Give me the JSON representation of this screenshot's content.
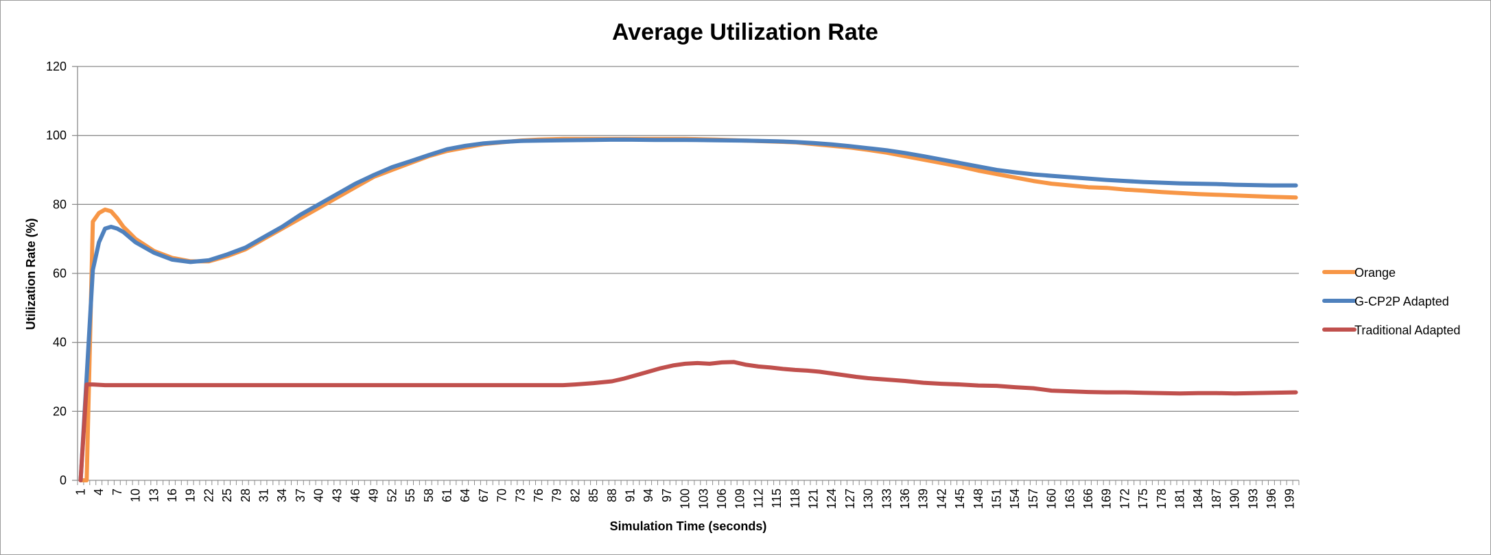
{
  "chart_data": {
    "type": "line",
    "title": "Average Utilization Rate",
    "xlabel": "Simulation Time (seconds)",
    "ylabel": "Utilization Rate (%)",
    "ylim": [
      0,
      120
    ],
    "yticks": [
      0,
      20,
      40,
      60,
      80,
      100,
      120
    ],
    "xlim": [
      1,
      200
    ],
    "xtick_labels": [
      "1",
      "4",
      "7",
      "10",
      "13",
      "16",
      "19",
      "22",
      "25",
      "28",
      "31",
      "34",
      "37",
      "40",
      "43",
      "46",
      "49",
      "52",
      "55",
      "58",
      "61",
      "64",
      "67",
      "70",
      "73",
      "76",
      "79",
      "82",
      "85",
      "88",
      "91",
      "94",
      "97",
      "100",
      "103",
      "106",
      "109",
      "112",
      "115",
      "118",
      "121",
      "124",
      "127",
      "130",
      "133",
      "136",
      "139",
      "142",
      "145",
      "148",
      "151",
      "154",
      "157",
      "160",
      "163",
      "166",
      "169",
      "172",
      "175",
      "178",
      "181",
      "184",
      "187",
      "190",
      "193",
      "196",
      "199"
    ],
    "grid": true,
    "legend_position": "right",
    "series": [
      {
        "name": "Orange",
        "color": "#F79646",
        "points": [
          [
            1,
            0
          ],
          [
            2,
            0
          ],
          [
            3,
            75
          ],
          [
            4,
            77.5
          ],
          [
            5,
            78.5
          ],
          [
            6,
            78
          ],
          [
            7,
            76
          ],
          [
            8,
            73.5
          ],
          [
            10,
            70
          ],
          [
            13,
            66.5
          ],
          [
            16,
            64.5
          ],
          [
            19,
            63.5
          ],
          [
            22,
            63.5
          ],
          [
            25,
            65
          ],
          [
            28,
            67
          ],
          [
            31,
            70
          ],
          [
            34,
            73
          ],
          [
            37,
            76
          ],
          [
            40,
            79
          ],
          [
            43,
            82
          ],
          [
            46,
            85
          ],
          [
            49,
            88
          ],
          [
            52,
            90
          ],
          [
            55,
            92
          ],
          [
            58,
            94
          ],
          [
            61,
            95.5
          ],
          [
            64,
            96.5
          ],
          [
            67,
            97.5
          ],
          [
            70,
            98
          ],
          [
            73,
            98.5
          ],
          [
            76,
            98.8
          ],
          [
            80,
            99
          ],
          [
            85,
            99
          ],
          [
            90,
            99
          ],
          [
            95,
            99
          ],
          [
            100,
            99
          ],
          [
            105,
            98.8
          ],
          [
            110,
            98.5
          ],
          [
            115,
            98.2
          ],
          [
            118,
            98
          ],
          [
            121,
            97.5
          ],
          [
            124,
            97
          ],
          [
            127,
            96.5
          ],
          [
            130,
            95.8
          ],
          [
            133,
            95
          ],
          [
            136,
            94
          ],
          [
            139,
            93
          ],
          [
            142,
            92
          ],
          [
            145,
            91
          ],
          [
            148,
            89.8
          ],
          [
            151,
            88.8
          ],
          [
            154,
            87.8
          ],
          [
            157,
            86.8
          ],
          [
            160,
            86
          ],
          [
            163,
            85.5
          ],
          [
            166,
            85
          ],
          [
            169,
            84.8
          ],
          [
            172,
            84.3
          ],
          [
            175,
            84
          ],
          [
            178,
            83.6
          ],
          [
            181,
            83.3
          ],
          [
            184,
            83
          ],
          [
            187,
            82.8
          ],
          [
            190,
            82.6
          ],
          [
            193,
            82.4
          ],
          [
            196,
            82.2
          ],
          [
            200,
            82
          ]
        ]
      },
      {
        "name": "G-CP2P Adapted",
        "color": "#4F81BD",
        "points": [
          [
            1,
            0
          ],
          [
            2,
            30
          ],
          [
            3,
            61
          ],
          [
            4,
            69
          ],
          [
            5,
            73
          ],
          [
            6,
            73.5
          ],
          [
            7,
            73
          ],
          [
            8,
            72
          ],
          [
            10,
            69
          ],
          [
            13,
            66
          ],
          [
            16,
            64
          ],
          [
            19,
            63.3
          ],
          [
            22,
            63.8
          ],
          [
            25,
            65.5
          ],
          [
            28,
            67.5
          ],
          [
            31,
            70.5
          ],
          [
            34,
            73.5
          ],
          [
            37,
            77
          ],
          [
            40,
            80
          ],
          [
            43,
            83
          ],
          [
            46,
            86
          ],
          [
            49,
            88.5
          ],
          [
            52,
            90.8
          ],
          [
            55,
            92.5
          ],
          [
            58,
            94.3
          ],
          [
            61,
            96
          ],
          [
            64,
            97
          ],
          [
            67,
            97.7
          ],
          [
            70,
            98.1
          ],
          [
            73,
            98.4
          ],
          [
            76,
            98.5
          ],
          [
            80,
            98.6
          ],
          [
            85,
            98.7
          ],
          [
            90,
            98.8
          ],
          [
            95,
            98.7
          ],
          [
            100,
            98.7
          ],
          [
            105,
            98.6
          ],
          [
            110,
            98.5
          ],
          [
            115,
            98.3
          ],
          [
            118,
            98.1
          ],
          [
            121,
            97.8
          ],
          [
            124,
            97.4
          ],
          [
            127,
            96.9
          ],
          [
            130,
            96.3
          ],
          [
            133,
            95.7
          ],
          [
            136,
            94.9
          ],
          [
            139,
            94
          ],
          [
            142,
            93
          ],
          [
            145,
            92
          ],
          [
            148,
            91
          ],
          [
            151,
            90
          ],
          [
            154,
            89.3
          ],
          [
            157,
            88.7
          ],
          [
            160,
            88.3
          ],
          [
            163,
            87.9
          ],
          [
            166,
            87.5
          ],
          [
            169,
            87.1
          ],
          [
            172,
            86.8
          ],
          [
            175,
            86.5
          ],
          [
            178,
            86.3
          ],
          [
            181,
            86.1
          ],
          [
            184,
            86
          ],
          [
            187,
            85.9
          ],
          [
            190,
            85.7
          ],
          [
            193,
            85.6
          ],
          [
            196,
            85.5
          ],
          [
            200,
            85.5
          ]
        ]
      },
      {
        "name": "Traditional Adapted",
        "color": "#C0504D",
        "points": [
          [
            1,
            0
          ],
          [
            2,
            27.8
          ],
          [
            3,
            27.8
          ],
          [
            5,
            27.6
          ],
          [
            10,
            27.6
          ],
          [
            20,
            27.6
          ],
          [
            30,
            27.6
          ],
          [
            40,
            27.6
          ],
          [
            50,
            27.6
          ],
          [
            60,
            27.6
          ],
          [
            70,
            27.6
          ],
          [
            76,
            27.6
          ],
          [
            80,
            27.6
          ],
          [
            82,
            27.8
          ],
          [
            85,
            28.2
          ],
          [
            88,
            28.7
          ],
          [
            90,
            29.5
          ],
          [
            92,
            30.5
          ],
          [
            94,
            31.5
          ],
          [
            96,
            32.5
          ],
          [
            98,
            33.3
          ],
          [
            100,
            33.8
          ],
          [
            102,
            34
          ],
          [
            104,
            33.8
          ],
          [
            106,
            34.2
          ],
          [
            108,
            34.3
          ],
          [
            110,
            33.5
          ],
          [
            112,
            33
          ],
          [
            114,
            32.7
          ],
          [
            116,
            32.3
          ],
          [
            118,
            32
          ],
          [
            120,
            31.8
          ],
          [
            122,
            31.5
          ],
          [
            124,
            31
          ],
          [
            126,
            30.5
          ],
          [
            128,
            30
          ],
          [
            130,
            29.6
          ],
          [
            133,
            29.2
          ],
          [
            136,
            28.8
          ],
          [
            139,
            28.3
          ],
          [
            142,
            28
          ],
          [
            145,
            27.8
          ],
          [
            148,
            27.5
          ],
          [
            151,
            27.4
          ],
          [
            154,
            27
          ],
          [
            157,
            26.7
          ],
          [
            160,
            26
          ],
          [
            163,
            25.8
          ],
          [
            166,
            25.6
          ],
          [
            169,
            25.5
          ],
          [
            172,
            25.5
          ],
          [
            175,
            25.4
          ],
          [
            178,
            25.3
          ],
          [
            181,
            25.2
          ],
          [
            184,
            25.3
          ],
          [
            187,
            25.3
          ],
          [
            190,
            25.2
          ],
          [
            193,
            25.3
          ],
          [
            196,
            25.4
          ],
          [
            200,
            25.5
          ]
        ]
      }
    ]
  }
}
